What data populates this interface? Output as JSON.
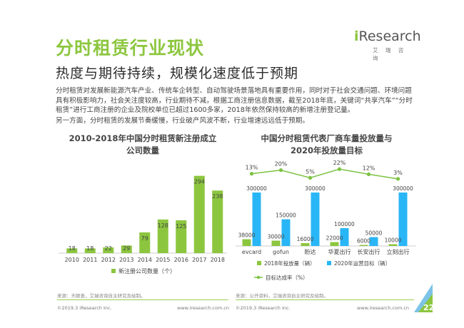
{
  "title": "分时租赁行业现状",
  "subtitle": "热度与期待持续，规模化速度低于预期",
  "logo": {
    "main_i": "i",
    "main_rest": "Research",
    "sub": "艾 瑞 咨 询"
  },
  "body": {
    "para1": "分时租赁对发展新能源汽车产业、传统车企转型、自动驾驶场景落地具有重要作用，同时对于社会交通问题、环境问题具有积极影响力，社会关注度较高，行业期待不减，根据工商注册信息数据，截至2018年底，关键词“共享汽车”“分时租赁”进行工商注册的企业及院校单位已超过1600多家，2018年依然保持较高的新增注册登记量。",
    "para2": "另一方面，分时租赁的发展节奏缓慢，行业破产风波不断，行业增速远远低于预期。"
  },
  "chart_data": [
    {
      "type": "bar",
      "title_line1": "2010-2018年中国分时租赁新注册成立",
      "title_line2": "公司数量",
      "categories": [
        "2010",
        "2011",
        "2012",
        "2013",
        "2014",
        "2015",
        "2016",
        "2017",
        "2018"
      ],
      "series": [
        {
          "name": "新注册公司数量（个）",
          "values": [
            18,
            18,
            22,
            29,
            79,
            128,
            125,
            294,
            238
          ]
        }
      ],
      "ylim": [
        0,
        320
      ]
    },
    {
      "type": "bar",
      "title_line1": "中国分时租赁代表厂商车量投放量与",
      "title_line2": "2020年投放量目标",
      "categories": [
        "evcard",
        "gofun",
        "盼达",
        "华夏出行",
        "长安出行",
        "立刻出行"
      ],
      "series": [
        {
          "name": "2018年投放量（辆）",
          "values": [
            38000,
            30000,
            16000,
            22000,
            6000,
            10000
          ]
        },
        {
          "name": "2020年运营目标（辆）",
          "values": [
            300000,
            150000,
            300000,
            100000,
            50000,
            300000
          ]
        },
        {
          "name": "目标达成率（%）",
          "values": [
            13,
            20,
            5,
            22,
            12,
            3
          ],
          "labels": [
            "13%",
            "20%",
            "5%",
            "22%",
            "12%",
            "3%"
          ]
        }
      ],
      "value_labels_2018": [
        "38000",
        "30000",
        "16000",
        "22000",
        "6000",
        "10000"
      ],
      "value_labels_2020": [
        "300000",
        "150000",
        "300000",
        "100000",
        "50000",
        "300000"
      ],
      "ylim": [
        0,
        300000
      ]
    }
  ],
  "sources": {
    "left": "来源：天眼查，艾瑞咨询自主研究及绘制。",
    "right": "来源：公开资料，艾瑞咨询自主研究及绘制。"
  },
  "footer": {
    "copyright_left": "©2019.3 iResearch Inc.",
    "url_left": "www.iresearch.com.cn",
    "copyright_right": "©2019.3 iResearch Inc.",
    "url_right": "www.iresearch.com.cn",
    "page_number": "22"
  },
  "colors": {
    "green": "#8cc63f",
    "blue": "#29b6f6",
    "line_green": "#7cc242"
  }
}
